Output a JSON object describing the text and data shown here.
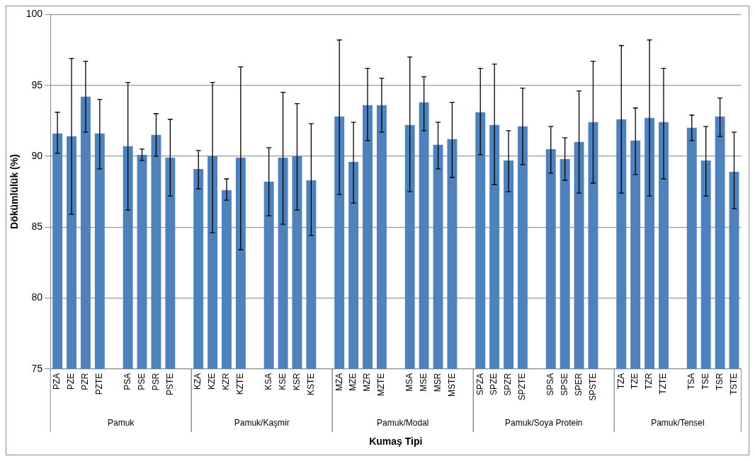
{
  "chart_data": {
    "type": "bar",
    "xlabel": "Kumaş Tipi",
    "ylabel": "Dökümlülük (%)",
    "categories": [
      "PZA",
      "PZE",
      "PZR",
      "PZTE",
      null,
      "PSA",
      "PSE",
      "PSR",
      "PSTE",
      null,
      "KZA",
      "KZE",
      "KZR",
      "KZTE",
      null,
      "KSA",
      "KSE",
      "KSR",
      "KSTE",
      null,
      "MZA",
      "MZE",
      "MZR",
      "MZTE",
      null,
      "MSA",
      "MSE",
      "MSR",
      "MSTE",
      null,
      "SPZA",
      "SPZE",
      "SPZR",
      "SPZTE",
      null,
      "SPSA",
      "SPSE",
      "SPER",
      "SPSTE",
      null,
      "TZA",
      "TZE",
      "TZR",
      "TZTE",
      null,
      "TSA",
      "TSE",
      "TSR",
      "TSTE"
    ],
    "values": [
      91.6,
      91.4,
      94.2,
      91.6,
      null,
      90.7,
      90.1,
      91.5,
      89.9,
      null,
      89.1,
      90.0,
      87.6,
      89.9,
      null,
      88.2,
      89.9,
      90.0,
      88.3,
      null,
      92.8,
      89.6,
      93.6,
      93.6,
      null,
      92.2,
      93.8,
      90.8,
      91.2,
      null,
      93.1,
      92.2,
      89.7,
      92.1,
      null,
      90.5,
      89.8,
      91.0,
      92.4,
      null,
      92.6,
      91.1,
      92.7,
      92.4,
      null,
      92.0,
      89.7,
      92.8,
      88.9
    ],
    "errors": [
      [
        90.2,
        93.1
      ],
      [
        85.9,
        96.9
      ],
      [
        91.7,
        96.7
      ],
      [
        89.1,
        94.0
      ],
      null,
      [
        86.2,
        95.2
      ],
      [
        89.7,
        90.5
      ],
      [
        90.0,
        93.0
      ],
      [
        87.2,
        92.6
      ],
      null,
      [
        87.7,
        90.4
      ],
      [
        84.6,
        95.2
      ],
      [
        86.9,
        88.4
      ],
      [
        83.4,
        96.3
      ],
      null,
      [
        85.8,
        90.6
      ],
      [
        85.2,
        94.5
      ],
      [
        86.2,
        93.7
      ],
      [
        84.4,
        92.3
      ],
      null,
      [
        87.3,
        98.2
      ],
      [
        86.7,
        92.4
      ],
      [
        91.1,
        96.2
      ],
      [
        91.7,
        95.5
      ],
      null,
      [
        87.5,
        97.0
      ],
      [
        91.8,
        95.6
      ],
      [
        89.1,
        92.4
      ],
      [
        88.5,
        93.8
      ],
      null,
      [
        90.1,
        96.2
      ],
      [
        88.0,
        96.5
      ],
      [
        87.5,
        91.8
      ],
      [
        89.4,
        94.8
      ],
      null,
      [
        88.8,
        92.1
      ],
      [
        88.3,
        91.3
      ],
      [
        87.4,
        94.6
      ],
      [
        88.1,
        96.7
      ],
      null,
      [
        87.4,
        97.8
      ],
      [
        88.7,
        93.4
      ],
      [
        87.2,
        98.2
      ],
      [
        88.4,
        96.2
      ],
      null,
      [
        91.1,
        92.9
      ],
      [
        87.2,
        92.1
      ],
      [
        91.4,
        94.1
      ],
      [
        86.3,
        91.7
      ]
    ],
    "annotations": [
      "Pamuk",
      "Pamuk/Kaşmir",
      "Pamuk/Modal",
      "Pamuk/Soya Protein",
      "Pamuk/Tensel"
    ],
    "color": "#4f81bd",
    "ylim": [
      75,
      100
    ],
    "yticks": [
      75,
      80,
      85,
      90,
      95,
      100
    ],
    "grid": "y",
    "legend": false
  }
}
